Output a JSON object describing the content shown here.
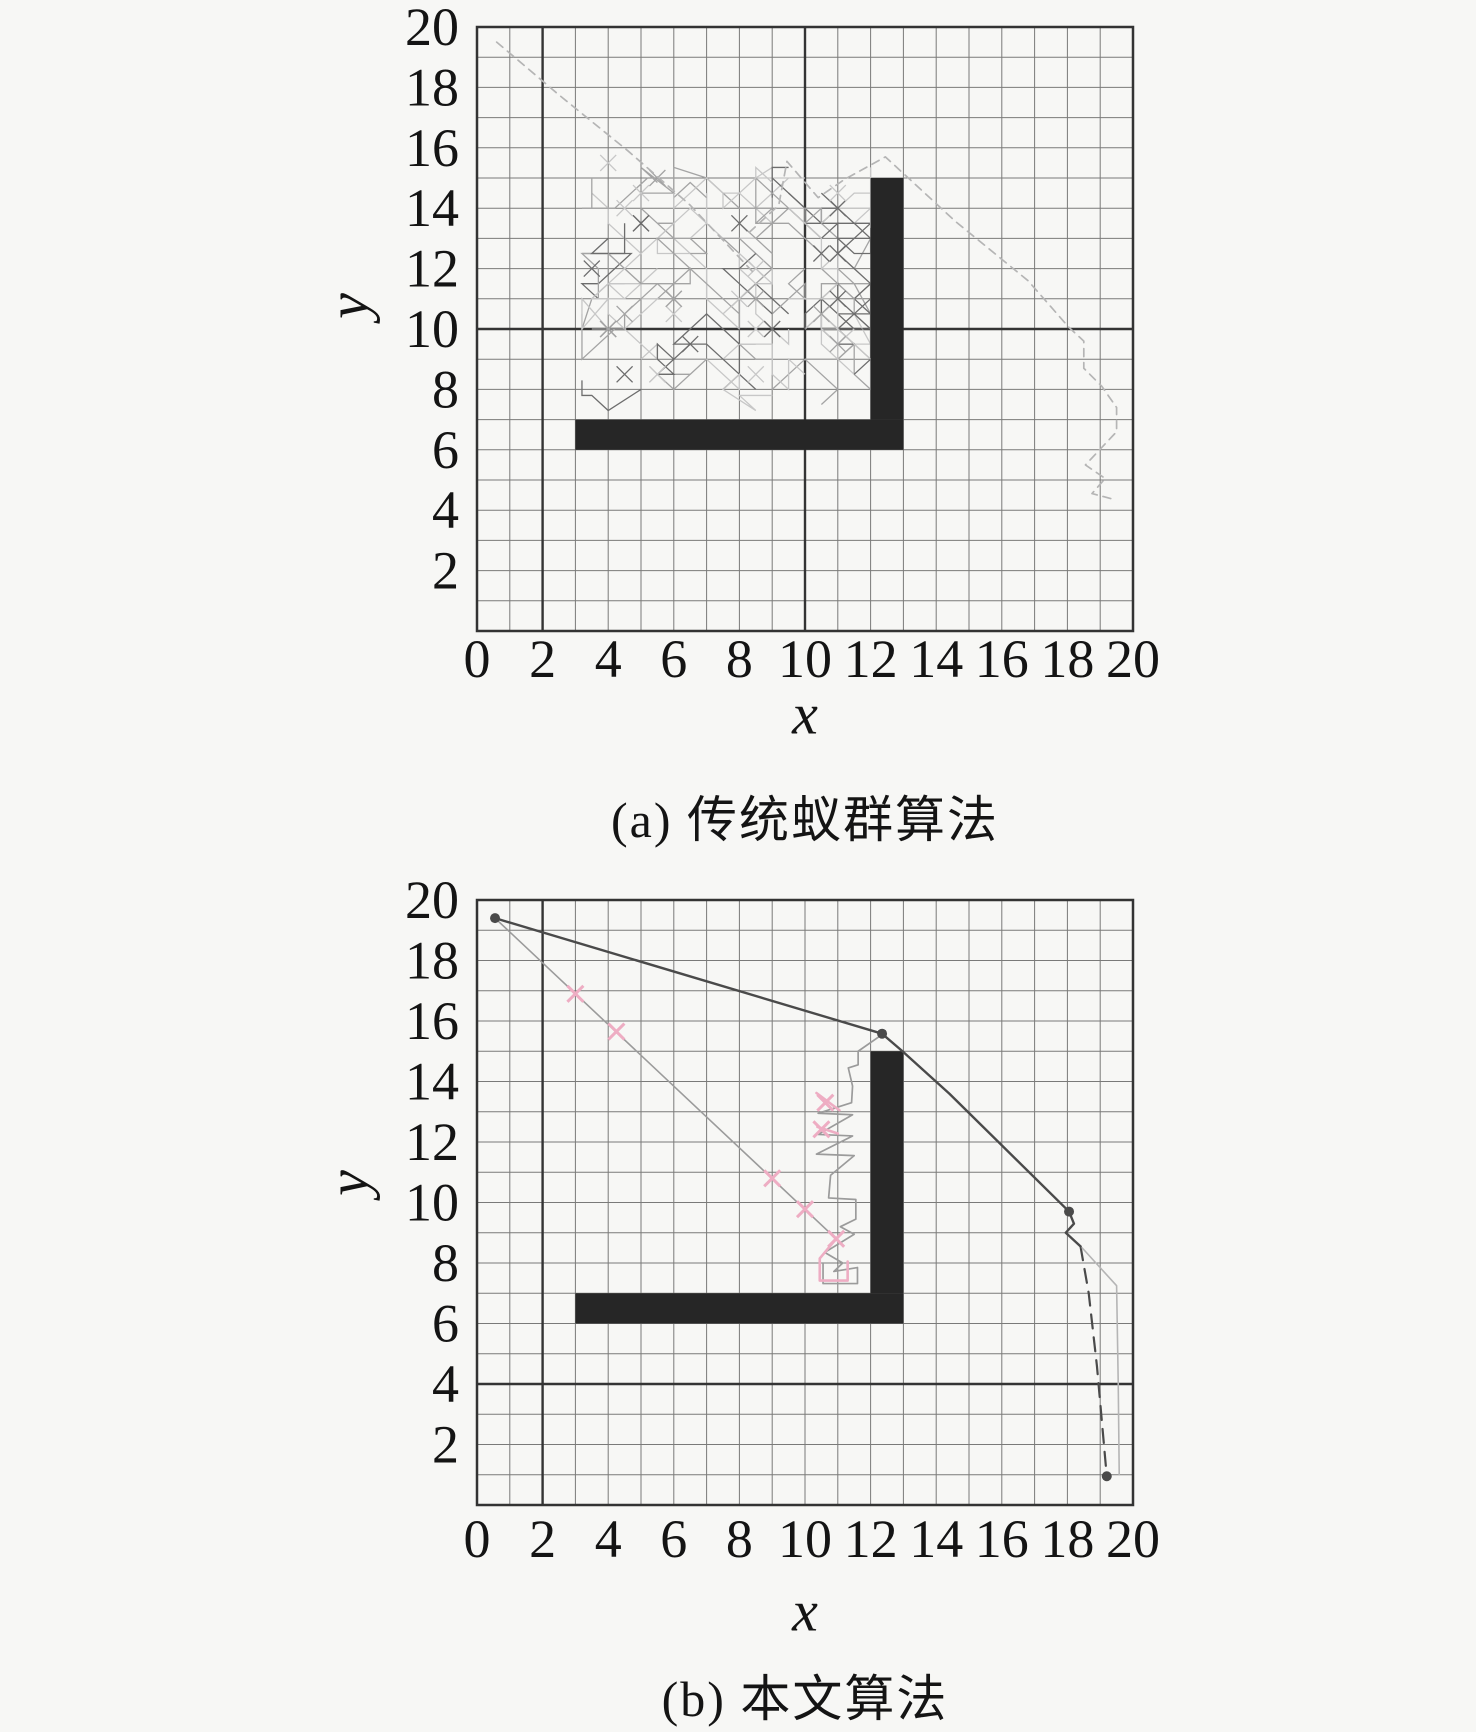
{
  "figure": {
    "colors": {
      "background": "#f7f7f5",
      "grid": "#6b6b6b",
      "grid_heavy": "#343434",
      "axis_border": "#333333",
      "obstacle": "#262626",
      "path_dark": "#4a4a4a",
      "path_mid": "#9b9b9b",
      "path_light": "#b5b5b5",
      "pink": "#eeadc3",
      "tangle_light": "#c7c7c7",
      "tangle_mid": "#a4a4a4",
      "tangle_dark": "#6d6d6d",
      "text": "#141414"
    }
  },
  "chart_data": [
    {
      "id": "a",
      "type": "line",
      "title": "(a) 传统蚁群算法",
      "xlabel": "x",
      "ylabel": "y",
      "xlim": [
        0,
        20
      ],
      "ylim": [
        0,
        20
      ],
      "xticks": [
        0,
        2,
        4,
        6,
        8,
        10,
        12,
        14,
        16,
        18,
        20
      ],
      "yticks": [
        2,
        4,
        6,
        8,
        10,
        12,
        14,
        16,
        18,
        20
      ],
      "grid": true,
      "heavy_gridlines": {
        "x": [
          2,
          10
        ],
        "y": [
          10
        ]
      },
      "obstacle_rects": [
        {
          "x": 3,
          "y": 6,
          "w": 10,
          "h": 1
        },
        {
          "x": 12,
          "y": 7,
          "w": 1,
          "h": 8
        }
      ],
      "paths": [
        {
          "name": "explore-diagonal-left",
          "style": "dashed",
          "color": "path_light",
          "width": 1.7,
          "points": [
            [
              0.6,
              19.5
            ],
            [
              2.5,
              17.75
            ],
            [
              4.6,
              15.9
            ],
            [
              6.5,
              14.1
            ],
            [
              8.4,
              11.9
            ]
          ]
        },
        {
          "name": "explore-diagonal-right",
          "style": "dashed",
          "color": "path_light",
          "width": 1.7,
          "points": [
            [
              8.3,
              13.2
            ],
            [
              9.2,
              14.1
            ],
            [
              9.45,
              15.55
            ],
            [
              10.4,
              14.35
            ],
            [
              11.2,
              14.95
            ],
            [
              12.45,
              15.7
            ],
            [
              14.6,
              13.55
            ],
            [
              16.8,
              11.6
            ],
            [
              18.05,
              10.05
            ],
            [
              18.5,
              9.6
            ],
            [
              18.5,
              8.7
            ],
            [
              19.05,
              8.1
            ],
            [
              19.5,
              7.4
            ],
            [
              19.5,
              6.6
            ],
            [
              18.55,
              5.5
            ],
            [
              19.15,
              5.05
            ],
            [
              18.75,
              4.55
            ],
            [
              19.45,
              4.35
            ]
          ]
        }
      ],
      "tangle": {
        "x_range": [
          3.2,
          12.0
        ],
        "y_range": [
          7.3,
          15.35
        ],
        "walks": 54,
        "steps": [
          4,
          9
        ],
        "cross_marks": 32,
        "seed": 1337
      }
    },
    {
      "id": "b",
      "type": "line",
      "title": "(b) 本文算法",
      "xlabel": "x",
      "ylabel": "y",
      "xlim": [
        0,
        20
      ],
      "ylim": [
        0,
        20
      ],
      "xticks": [
        0,
        2,
        4,
        6,
        8,
        10,
        12,
        14,
        16,
        18,
        20
      ],
      "yticks": [
        2,
        4,
        6,
        8,
        10,
        12,
        14,
        16,
        18,
        20
      ],
      "grid": true,
      "heavy_gridlines": {
        "x": [
          2
        ],
        "y": [
          4
        ]
      },
      "obstacle_rects": [
        {
          "x": 3,
          "y": 6,
          "w": 10,
          "h": 1
        },
        {
          "x": 12,
          "y": 7,
          "w": 1,
          "h": 8
        }
      ],
      "paths": [
        {
          "name": "best-path-upper",
          "style": "solid",
          "color": "path_dark",
          "width": 2.4,
          "points": [
            [
              0.55,
              19.4
            ],
            [
              12.35,
              15.58
            ]
          ]
        },
        {
          "name": "best-path-descent",
          "style": "solid",
          "color": "path_dark",
          "width": 2.4,
          "points": [
            [
              12.35,
              15.58
            ],
            [
              12.95,
              15.02
            ],
            [
              14.4,
              13.6
            ],
            [
              18.05,
              9.7
            ],
            [
              18.2,
              9.3
            ],
            [
              17.95,
              9.0
            ],
            [
              18.4,
              8.55
            ]
          ]
        },
        {
          "name": "best-path-tail",
          "style": "dashed",
          "color": "path_dark",
          "width": 2.2,
          "points": [
            [
              18.4,
              8.55
            ],
            [
              18.65,
              7.0
            ],
            [
              18.9,
              4.6
            ],
            [
              19.2,
              0.95
            ]
          ]
        },
        {
          "name": "alt-path-right",
          "style": "solid",
          "color": "path_light",
          "width": 1.6,
          "points": [
            [
              18.45,
              8.5
            ],
            [
              19.5,
              7.25
            ],
            [
              19.55,
              4.0
            ],
            [
              19.58,
              1.0
            ]
          ]
        },
        {
          "name": "straight-explore-line",
          "style": "solid",
          "color": "path_mid",
          "width": 1.6,
          "points": [
            [
              0.55,
              19.4
            ],
            [
              10.95,
              8.8
            ]
          ]
        },
        {
          "name": "zigzag-wall-path",
          "style": "solid",
          "color": "path_mid",
          "width": 1.7,
          "points": [
            [
              12.35,
              15.55
            ],
            [
              11.62,
              15.0
            ],
            [
              11.62,
              14.55
            ],
            [
              11.32,
              14.45
            ],
            [
              11.45,
              13.85
            ],
            [
              11.42,
              13.3
            ],
            [
              10.4,
              12.95
            ],
            [
              11.45,
              12.9
            ],
            [
              10.4,
              12.25
            ],
            [
              11.45,
              12.2
            ],
            [
              10.35,
              11.6
            ],
            [
              11.5,
              11.55
            ],
            [
              10.78,
              10.9
            ],
            [
              10.72,
              10.15
            ],
            [
              11.55,
              10.1
            ],
            [
              11.55,
              9.45
            ],
            [
              11.08,
              9.2
            ],
            [
              11.5,
              8.95
            ],
            [
              10.6,
              8.35
            ],
            [
              11.15,
              8.0
            ],
            [
              10.88,
              7.72
            ],
            [
              11.6,
              7.85
            ],
            [
              11.6,
              7.32
            ],
            [
              10.55,
              7.32
            ],
            [
              10.55,
              8.0
            ]
          ]
        },
        {
          "name": "pink-hook",
          "style": "solid",
          "color": "pink",
          "width": 2.6,
          "points": [
            [
              10.95,
              8.8
            ],
            [
              10.45,
              8.15
            ],
            [
              10.45,
              7.42
            ],
            [
              11.3,
              7.42
            ],
            [
              11.3,
              8.05
            ]
          ]
        },
        {
          "name": "pink-fragment-1",
          "style": "solid",
          "color": "pink",
          "width": 2.6,
          "points": [
            [
              10.35,
              13.62
            ],
            [
              11.05,
              13.05
            ]
          ]
        },
        {
          "name": "pink-fragment-2",
          "style": "solid",
          "color": "pink",
          "width": 2.6,
          "points": [
            [
              10.38,
              12.5
            ],
            [
              11.0,
              12.28
            ]
          ]
        }
      ],
      "markers": {
        "dots": [
          [
            0.55,
            19.4
          ],
          [
            12.35,
            15.58
          ],
          [
            18.05,
            9.7
          ],
          [
            19.2,
            0.95
          ]
        ],
        "pink_x": [
          [
            3.0,
            16.9
          ],
          [
            4.25,
            15.65
          ],
          [
            9.0,
            10.8
          ],
          [
            10.0,
            9.78
          ],
          [
            10.95,
            8.8
          ],
          [
            10.62,
            13.3
          ],
          [
            10.5,
            12.42
          ]
        ]
      }
    }
  ]
}
